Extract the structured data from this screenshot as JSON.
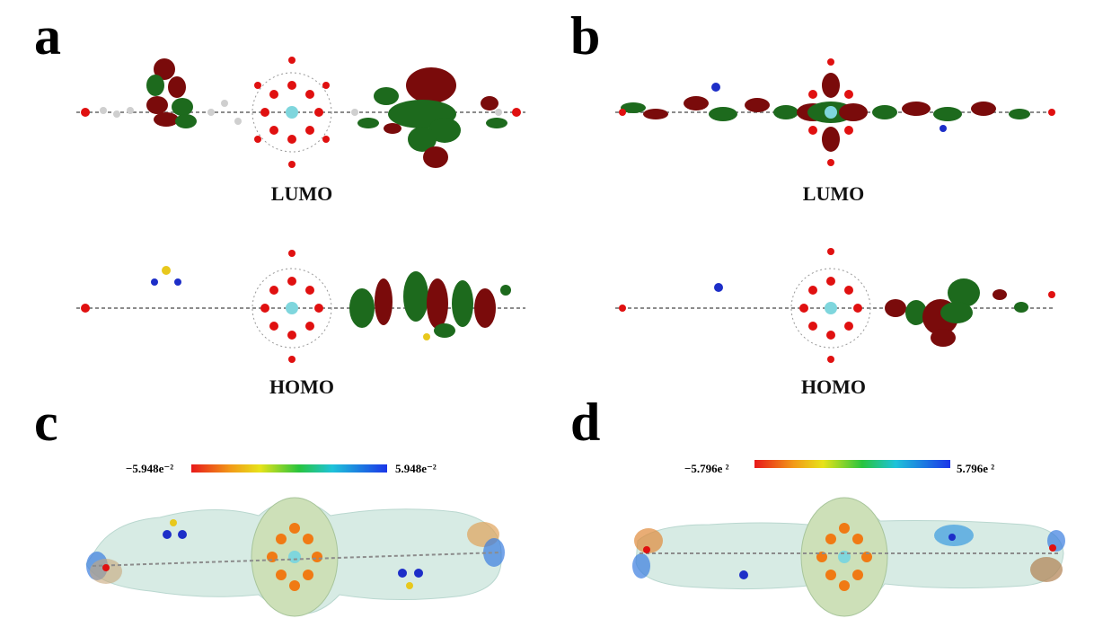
{
  "panels": {
    "a": {
      "letter": "a",
      "lumo_label": "LUMO",
      "homo_label": "HOMO"
    },
    "b": {
      "letter": "b",
      "lumo_label": "LUMO",
      "homo_label": "HOMO"
    },
    "c": {
      "letter": "c",
      "scale_min": "−5.948e⁻²",
      "scale_max": "5.948e⁻²"
    },
    "d": {
      "letter": "d",
      "scale_min": "−5.796e ²",
      "scale_max": "5.796e ²"
    }
  },
  "colors": {
    "orbital_positive": "#7a0b0b",
    "orbital_negative": "#1d6a1d",
    "carbon": "#8c8c8c",
    "hydrogen": "#e6e6e6",
    "oxygen": "#e01010",
    "nitrogen": "#1d2ec8",
    "sulfur": "#e8c81c",
    "metal": "#7fd6dd",
    "esp_surface": "#d7ebe4"
  }
}
